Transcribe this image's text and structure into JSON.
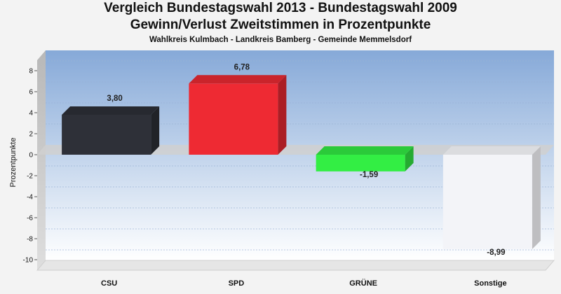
{
  "chart_data": {
    "type": "bar",
    "title": "Vergleich Bundestagswahl 2013 - Bundestagswahl 2009",
    "title2": "Gewinn/Verlust Zweitstimmen in Prozentpunkte",
    "subtitle": "Wahlkreis Kulmbach - Landkreis Bamberg - Gemeinde Memmelsdorf",
    "ylabel": "Prozentpunkte",
    "xlabel": "",
    "categories": [
      "CSU",
      "SPD",
      "GRÜNE",
      "Sonstige"
    ],
    "values": [
      3.8,
      6.78,
      -1.59,
      -8.99
    ],
    "value_labels": [
      "3,80",
      "6,78",
      "-1,59",
      "-8,99"
    ],
    "colors": [
      "#2e3038",
      "#ee2a33",
      "#33ee44",
      "#f3f4f8"
    ],
    "ylim": [
      -11,
      9
    ],
    "yticks": [
      8,
      6,
      4,
      2,
      0,
      -2,
      -4,
      -6,
      -8,
      -10
    ],
    "grid": true,
    "legend": "none"
  }
}
